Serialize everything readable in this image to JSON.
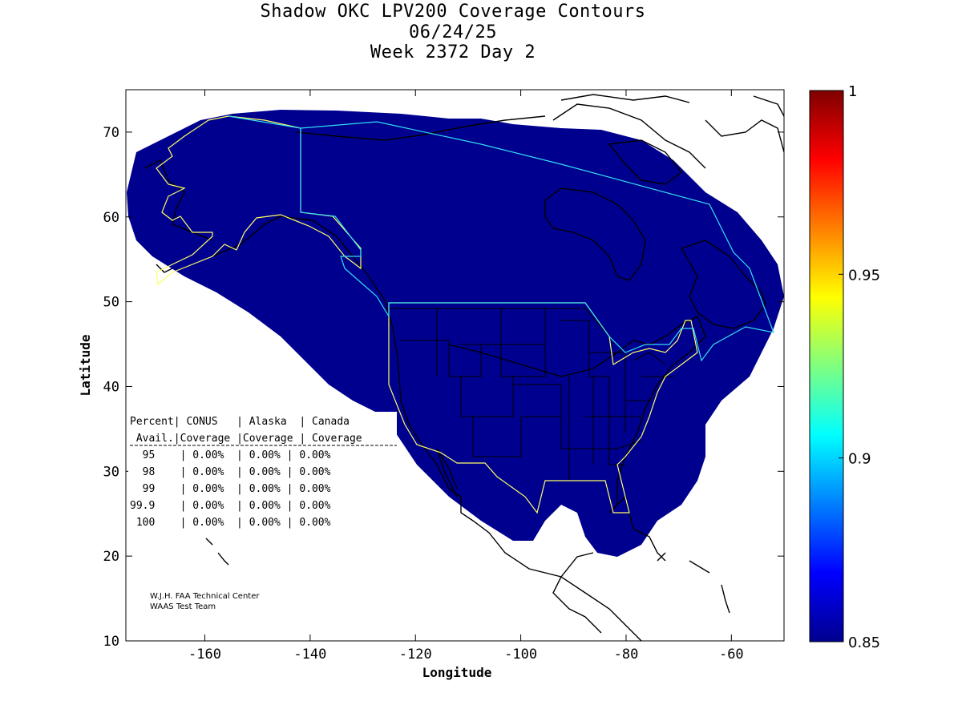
{
  "title": {
    "line1": "Shadow OKC LPV200 Coverage Contours",
    "line2": "06/24/25",
    "line3": "Week 2372 Day 2"
  },
  "axes": {
    "xlabel": "Longitude",
    "ylabel": "Latitude",
    "xlim": [
      -175,
      -50
    ],
    "ylim": [
      10,
      75
    ],
    "xticks": [
      -160,
      -140,
      -120,
      -100,
      -80,
      -60
    ],
    "yticks": [
      10,
      20,
      30,
      40,
      50,
      60,
      70
    ]
  },
  "colorbar": {
    "min": 0.85,
    "max": 1,
    "ticks": [
      {
        "value": 1,
        "label": "1"
      },
      {
        "value": 0.95,
        "label": "0.95"
      },
      {
        "value": 0.9,
        "label": "0.9"
      },
      {
        "value": 0.85,
        "label": "0.85"
      }
    ],
    "colormap": "jet"
  },
  "coverage_fill_color": "#00008f",
  "boundary_colors": {
    "conus": "#ffff66",
    "alaska": "#ffff66",
    "canada": "#33ddee"
  },
  "table": {
    "header1": [
      "Percent|",
      " CONUS   ",
      "| Alaska  ",
      "| Canada"
    ],
    "header2": [
      " Avail.|",
      "Coverage ",
      "|Coverage ",
      "| Coverage"
    ],
    "rows": [
      {
        "pct": "  95  ",
        "conus": "0.00%",
        "alaska": "0.00%",
        "canada": "0.00%"
      },
      {
        "pct": "  98  ",
        "conus": "0.00%",
        "alaska": "0.00%",
        "canada": "0.00%"
      },
      {
        "pct": "  99  ",
        "conus": "0.00%",
        "alaska": "0.00%",
        "canada": "0.00%"
      },
      {
        "pct": "99.9  ",
        "conus": "0.00%",
        "alaska": "0.00%",
        "canada": "0.00%"
      },
      {
        "pct": " 100  ",
        "conus": "0.00%",
        "alaska": "0.00%",
        "canada": "0.00%"
      }
    ]
  },
  "credits": {
    "line1": "W.J.H. FAA Technical Center",
    "line2": "WAAS Test Team"
  }
}
